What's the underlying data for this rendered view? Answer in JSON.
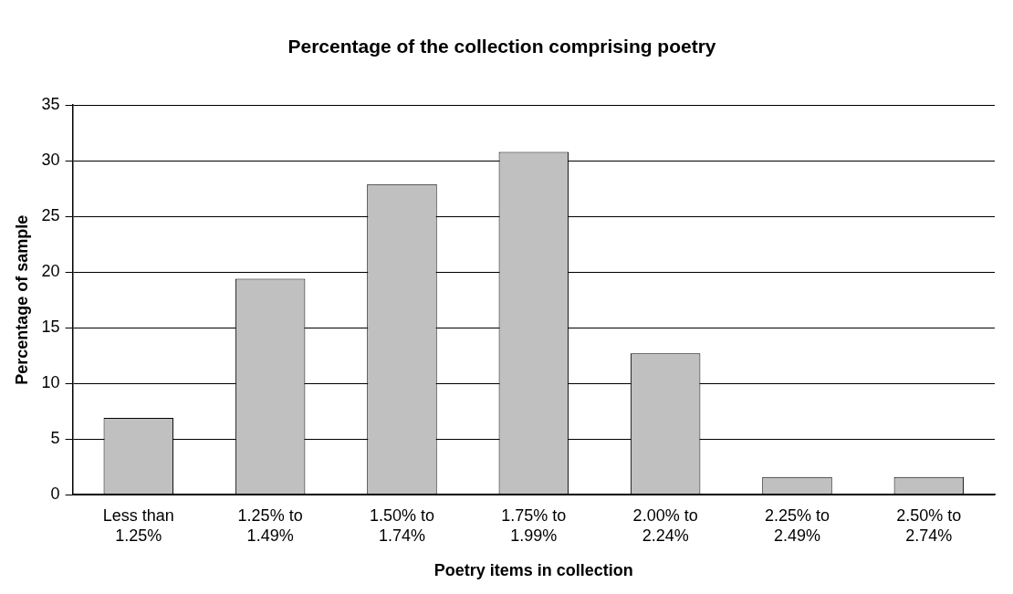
{
  "chart_data": {
    "type": "bar",
    "title": "Percentage of the collection comprising poetry",
    "xlabel": "Poetry items in collection",
    "ylabel": "Percentage of sample",
    "categories": [
      "Less than\n1.25%",
      "1.25% to\n1.49%",
      "1.50% to\n1.74%",
      "1.75% to\n1.99%",
      "2.00% to\n2.24%",
      "2.25% to\n2.49%",
      "2.50% to\n2.74%"
    ],
    "values": [
      6.9,
      19.4,
      27.9,
      30.8,
      12.7,
      1.6,
      1.6
    ],
    "color": "#c0c0c0",
    "ylim": [
      0,
      35
    ],
    "yticks": [
      0,
      5,
      10,
      15,
      20,
      25,
      30,
      35
    ],
    "grid": "y",
    "legend": false
  }
}
